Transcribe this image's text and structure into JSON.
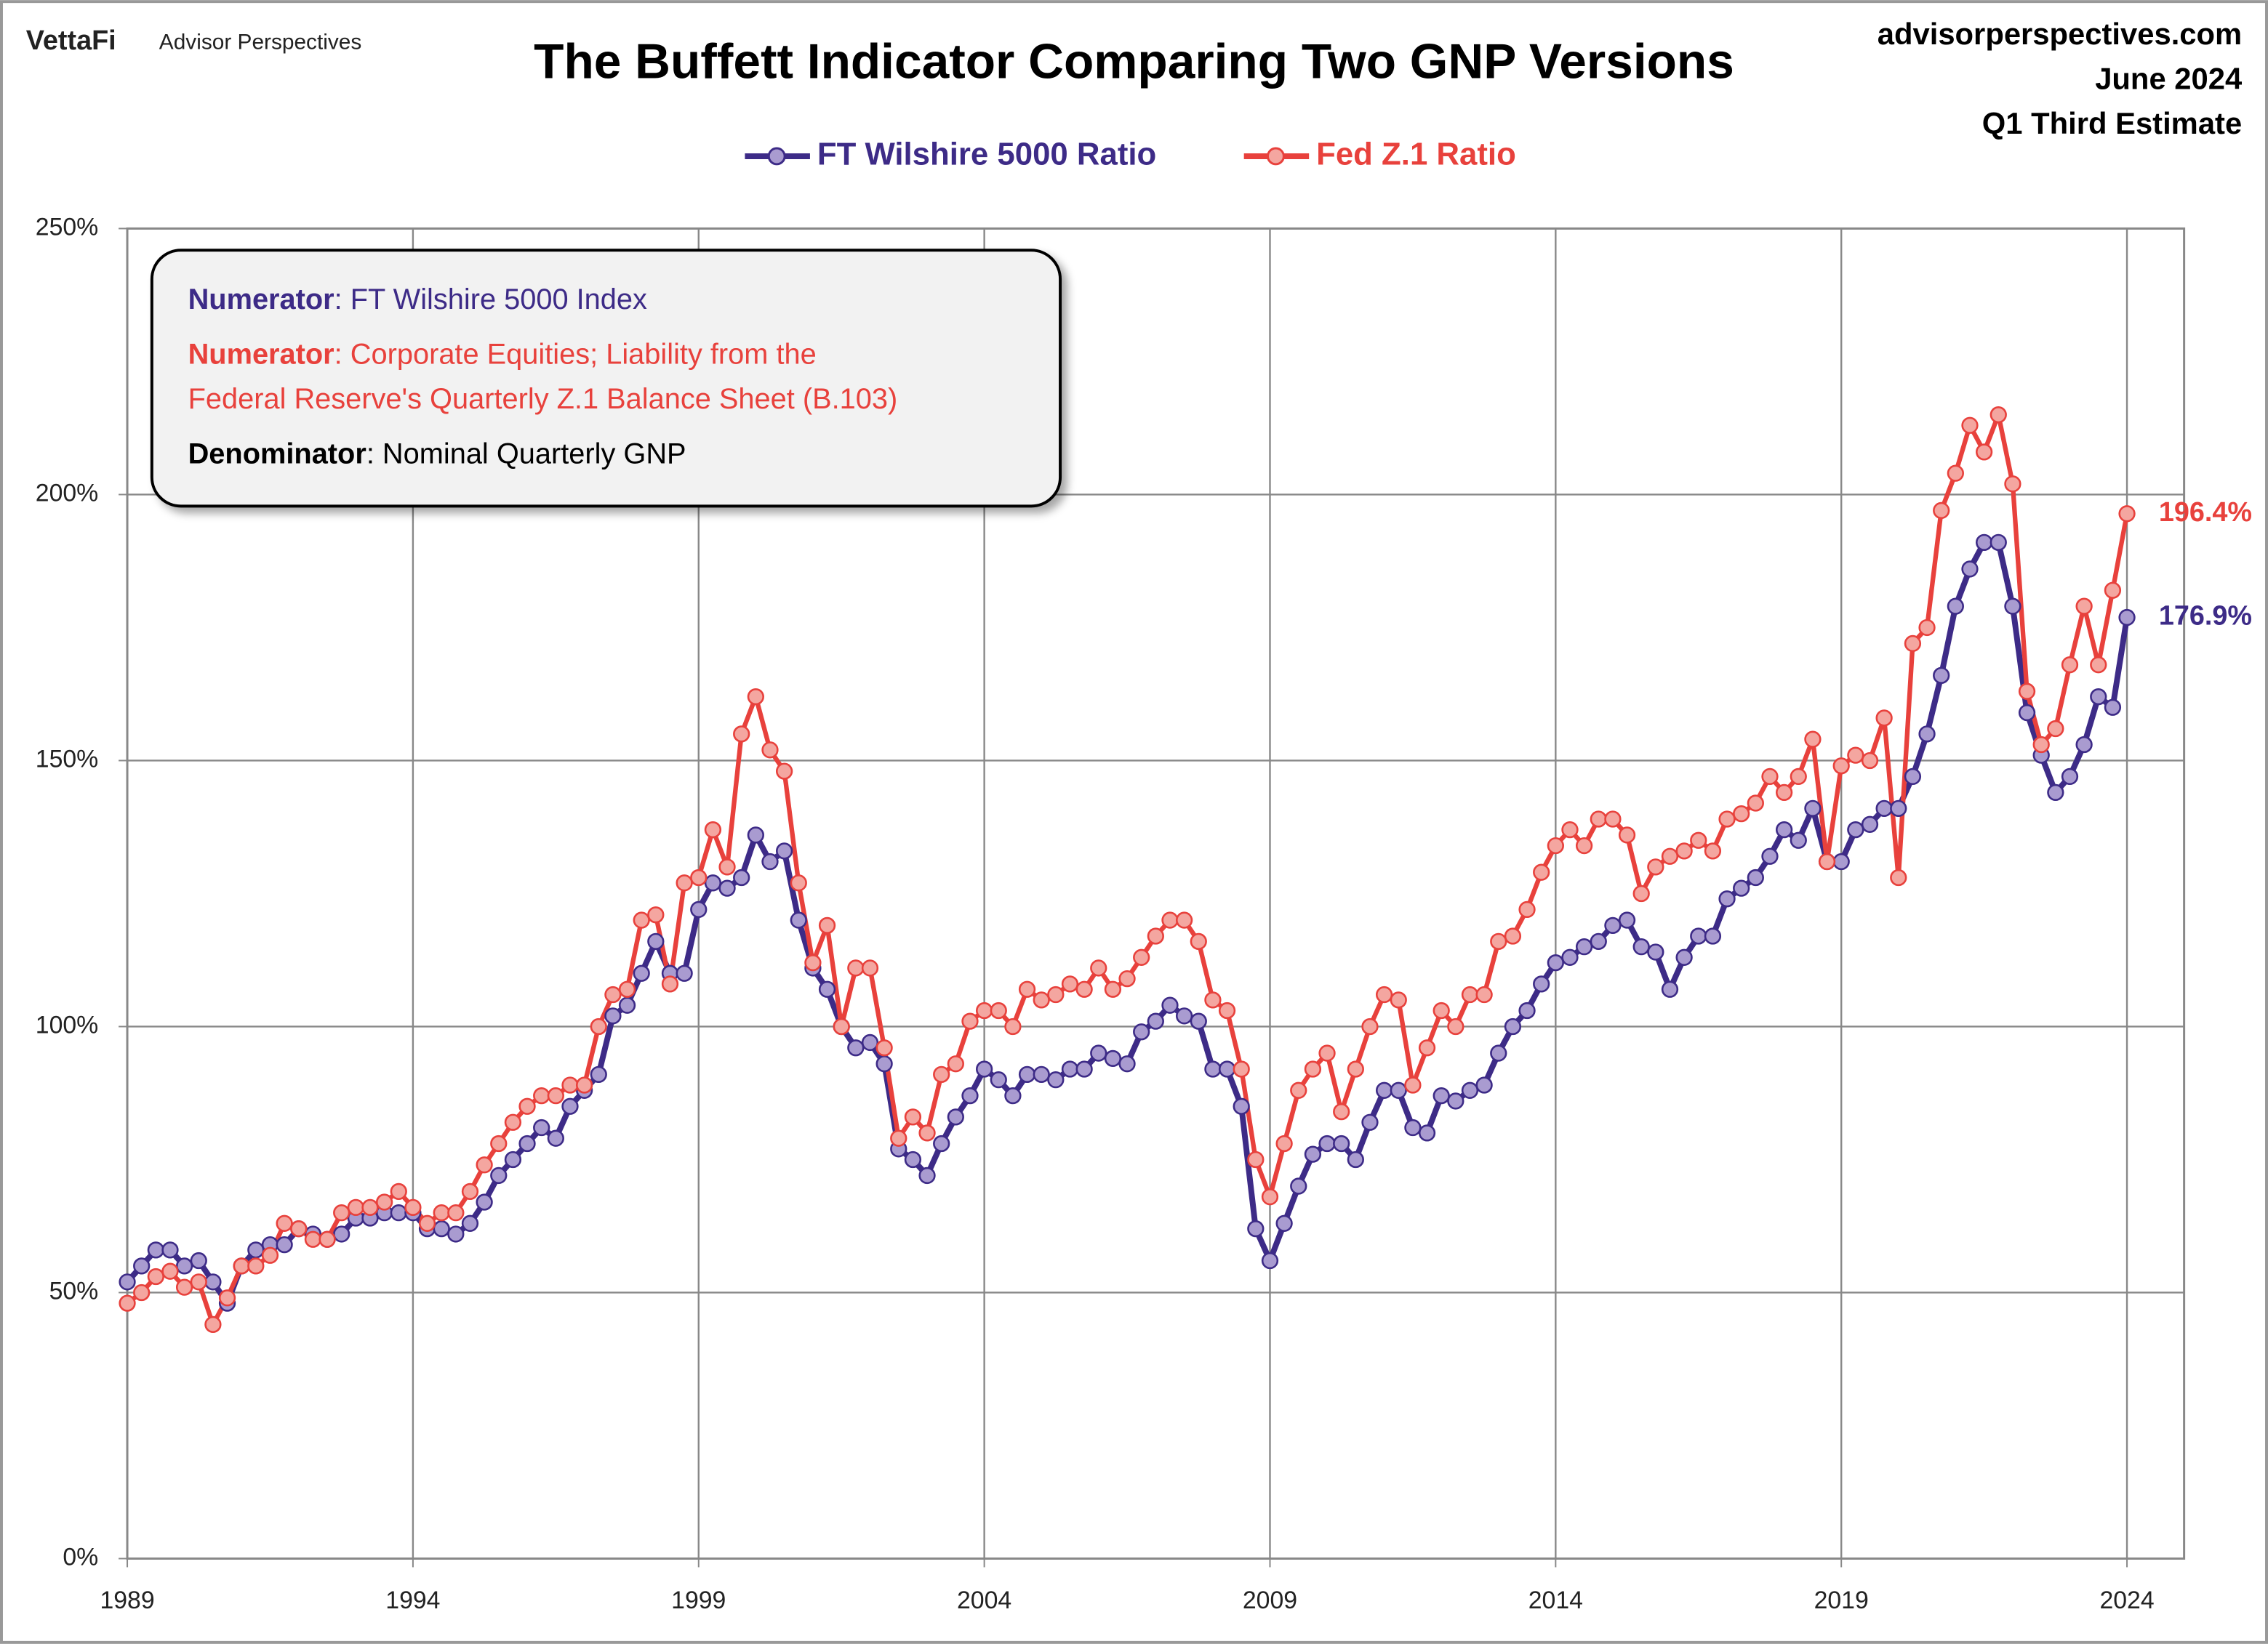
{
  "brand": {
    "logo": "VettaFi",
    "name": "Advisor Perspectives"
  },
  "header_right": [
    "advisorperspectives.com",
    "June 2024",
    "Q1 Third Estimate"
  ],
  "annotation": [
    {
      "bold": "Numerator",
      "lines": [
        ": FT Wilshire 5000 Index"
      ],
      "color": "#3d2b87"
    },
    {
      "bold": "Numerator",
      "lines": [
        ": Corporate Equities; Liability from the",
        "Federal Reserve's Quarterly Z.1 Balance Sheet (B.103)"
      ],
      "color": "#e8413c"
    },
    {
      "bold": "Denominator",
      "lines": [
        ": Nominal Quarterly GNP"
      ],
      "color": "#000000"
    }
  ],
  "chart_data": {
    "type": "line",
    "title": "The Buffett Indicator Comparing Two GNP Versions",
    "x": [
      1989,
      1989.25,
      1989.5,
      1989.75,
      1990,
      1990.25,
      1990.5,
      1990.75,
      1991,
      1991.25,
      1991.5,
      1991.75,
      1992,
      1992.25,
      1992.5,
      1992.75,
      1993,
      1993.25,
      1993.5,
      1993.75,
      1994,
      1994.25,
      1994.5,
      1994.75,
      1995,
      1995.25,
      1995.5,
      1995.75,
      1996,
      1996.25,
      1996.5,
      1996.75,
      1997,
      1997.25,
      1997.5,
      1997.75,
      1998,
      1998.25,
      1998.5,
      1998.75,
      1999,
      1999.25,
      1999.5,
      1999.75,
      2000,
      2000.25,
      2000.5,
      2000.75,
      2001,
      2001.25,
      2001.5,
      2001.75,
      2002,
      2002.25,
      2002.5,
      2002.75,
      2003,
      2003.25,
      2003.5,
      2003.75,
      2004,
      2004.25,
      2004.5,
      2004.75,
      2005,
      2005.25,
      2005.5,
      2005.75,
      2006,
      2006.25,
      2006.5,
      2006.75,
      2007,
      2007.25,
      2007.5,
      2007.75,
      2008,
      2008.25,
      2008.5,
      2008.75,
      2009,
      2009.25,
      2009.5,
      2009.75,
      2010,
      2010.25,
      2010.5,
      2010.75,
      2011,
      2011.25,
      2011.5,
      2011.75,
      2012,
      2012.25,
      2012.5,
      2012.75,
      2013,
      2013.25,
      2013.5,
      2013.75,
      2014,
      2014.25,
      2014.5,
      2014.75,
      2015,
      2015.25,
      2015.5,
      2015.75,
      2016,
      2016.25,
      2016.5,
      2016.75,
      2017,
      2017.25,
      2017.5,
      2017.75,
      2018,
      2018.25,
      2018.5,
      2018.75,
      2019,
      2019.25,
      2019.5,
      2019.75,
      2020,
      2020.25,
      2020.5,
      2020.75,
      2021,
      2021.25,
      2021.5,
      2021.75,
      2022,
      2022.25,
      2022.5,
      2022.75,
      2023,
      2023.25,
      2023.5,
      2023.75,
      2024
    ],
    "series": [
      {
        "name": "FT Wilshire 5000 Ratio",
        "color": "#3d2b87",
        "marker_fill": "#a99bd0",
        "end_label": "176.9%",
        "values": [
          52,
          55,
          58,
          58,
          55,
          56,
          52,
          48,
          55,
          58,
          59,
          59,
          62,
          61,
          60,
          61,
          64,
          64,
          65,
          65,
          65,
          62,
          62,
          61,
          63,
          67,
          72,
          75,
          78,
          81,
          79,
          85,
          88,
          91,
          102,
          104,
          110,
          116,
          110,
          110,
          122,
          127,
          126,
          128,
          136,
          131,
          133,
          120,
          111,
          107,
          100,
          96,
          97,
          93,
          77,
          75,
          72,
          78,
          83,
          87,
          92,
          90,
          87,
          91,
          91,
          90,
          92,
          92,
          95,
          94,
          93,
          99,
          101,
          104,
          102,
          101,
          92,
          92,
          85,
          62,
          56,
          63,
          70,
          76,
          78,
          78,
          75,
          82,
          88,
          88,
          81,
          80,
          87,
          86,
          88,
          89,
          95,
          100,
          103,
          108,
          112,
          113,
          115,
          116,
          119,
          120,
          115,
          114,
          107,
          113,
          117,
          117,
          124,
          126,
          128,
          132,
          137,
          135,
          141,
          131,
          131,
          137,
          138,
          141,
          141,
          147,
          155,
          166,
          179,
          186,
          191,
          191,
          179,
          159,
          151,
          144,
          147,
          153,
          162,
          160,
          176.9
        ]
      },
      {
        "name": "Fed Z.1 Ratio",
        "color": "#e8413c",
        "marker_fill": "#f4a6a0",
        "end_label": "196.4%",
        "values": [
          48,
          50,
          53,
          54,
          51,
          52,
          44,
          49,
          55,
          55,
          57,
          63,
          62,
          60,
          60,
          65,
          66,
          66,
          67,
          69,
          66,
          63,
          65,
          65,
          69,
          74,
          78,
          82,
          85,
          87,
          87,
          89,
          89,
          100,
          106,
          107,
          120,
          121,
          108,
          127,
          128,
          137,
          130,
          155,
          162,
          152,
          148,
          127,
          112,
          119,
          100,
          111,
          111,
          96,
          79,
          83,
          80,
          91,
          93,
          101,
          103,
          103,
          100,
          107,
          105,
          106,
          108,
          107,
          111,
          107,
          109,
          113,
          117,
          120,
          120,
          116,
          105,
          103,
          92,
          75,
          68,
          78,
          88,
          92,
          95,
          84,
          92,
          100,
          106,
          105,
          89,
          96,
          103,
          100,
          106,
          106,
          116,
          117,
          122,
          129,
          134,
          137,
          134,
          139,
          139,
          136,
          125,
          130,
          132,
          133,
          135,
          133,
          139,
          140,
          142,
          147,
          144,
          147,
          154,
          131,
          149,
          151,
          150,
          158,
          128,
          172,
          175,
          197,
          204,
          213,
          208,
          215,
          202,
          163,
          153,
          156,
          168,
          179,
          168,
          182,
          196.4
        ]
      }
    ],
    "xlim": [
      1989,
      2025
    ],
    "xticks": [
      1989,
      1994,
      1999,
      2004,
      2009,
      2014,
      2019,
      2024
    ],
    "ylim": [
      0,
      250
    ],
    "yticks": [
      {
        "value": 0,
        "label": "0%"
      },
      {
        "value": 50,
        "label": "50%"
      },
      {
        "value": 100,
        "label": "100%"
      },
      {
        "value": 150,
        "label": "150%"
      },
      {
        "value": 200,
        "label": "200%"
      },
      {
        "value": 250,
        "label": "250%"
      }
    ],
    "grid": true,
    "legend": "top"
  }
}
